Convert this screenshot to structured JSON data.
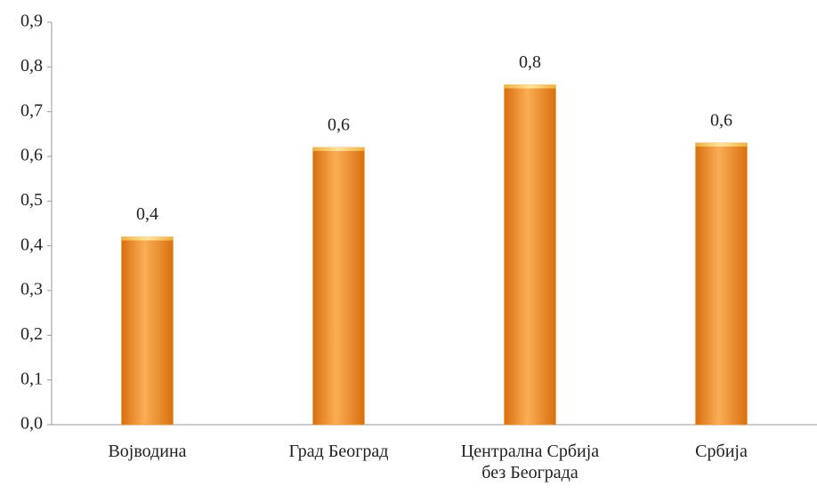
{
  "chart_data": {
    "type": "bar",
    "categories": [
      "Војводина",
      "Град Београд",
      "Централна Србија без Београда",
      "Србија"
    ],
    "values": [
      0.42,
      0.62,
      0.76,
      0.63
    ],
    "value_labels": [
      "0,4",
      "0,6",
      "0,8",
      "0,6"
    ],
    "color": "#f39a2e",
    "ylim": [
      0,
      0.9
    ],
    "yticks": [
      {
        "value": 0,
        "label": "0,0"
      },
      {
        "value": 0.1,
        "label": "0,1"
      },
      {
        "value": 0.2,
        "label": "0,2"
      },
      {
        "value": 0.3,
        "label": "0,3"
      },
      {
        "value": 0.4,
        "label": "0,4"
      },
      {
        "value": 0.5,
        "label": "0,5"
      },
      {
        "value": 0.6,
        "label": "0,6"
      },
      {
        "value": 0.7,
        "label": "0,7"
      },
      {
        "value": 0.8,
        "label": "0,8"
      },
      {
        "value": 0.9,
        "label": "0,9"
      }
    ],
    "grid": false
  }
}
